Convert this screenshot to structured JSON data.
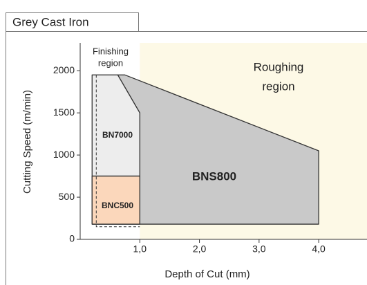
{
  "chart_data": {
    "type": "region",
    "title": "Grey Cast Iron",
    "xlabel": "Depth of Cut (mm)",
    "ylabel": "Cutting Speed (m/min)",
    "xlim": [
      0,
      4.81
    ],
    "ylim": [
      0,
      2330
    ],
    "xticks": [
      {
        "value": 1,
        "label": "1,0"
      },
      {
        "value": 2,
        "label": "2,0"
      },
      {
        "value": 3,
        "label": "3,0"
      },
      {
        "value": 4,
        "label": "4,0"
      }
    ],
    "yticks": [
      0,
      500,
      1000,
      1500,
      2000
    ],
    "zones": [
      {
        "name": [
          "Finishing",
          "region"
        ],
        "x": [
          0,
          1
        ],
        "color": "#ffffff"
      },
      {
        "name": [
          "Roughing",
          "region"
        ],
        "x": [
          1,
          4.81
        ],
        "color": "#fdf9e6"
      }
    ],
    "regions": [
      {
        "name": "BNS800",
        "color": "#c9c9c9",
        "x": [
          0.63,
          0.75,
          4.0,
          4.0,
          1.0,
          1.0
        ],
        "y": [
          1950,
          1950,
          1050,
          180,
          180,
          1500
        ]
      },
      {
        "name": "BN7000",
        "color": "#ededed",
        "x": [
          0.2,
          0.63,
          1.0,
          1.0,
          0.2
        ],
        "y": [
          1950,
          1950,
          1500,
          180,
          180
        ]
      },
      {
        "name": "BNC500",
        "color": "#fbd7bb",
        "x": [
          0.2,
          1.0,
          1.0,
          0.2
        ],
        "y": [
          180,
          180,
          750,
          750
        ]
      }
    ],
    "band": {
      "color": "#f2a18f",
      "x": [
        0.2,
        1.0,
        1.0,
        0.2
      ],
      "y": [
        580,
        580,
        750,
        750
      ]
    },
    "outline": {
      "x": [
        0.27,
        0.27,
        1.0
      ],
      "y": [
        1950,
        150,
        150
      ]
    }
  }
}
